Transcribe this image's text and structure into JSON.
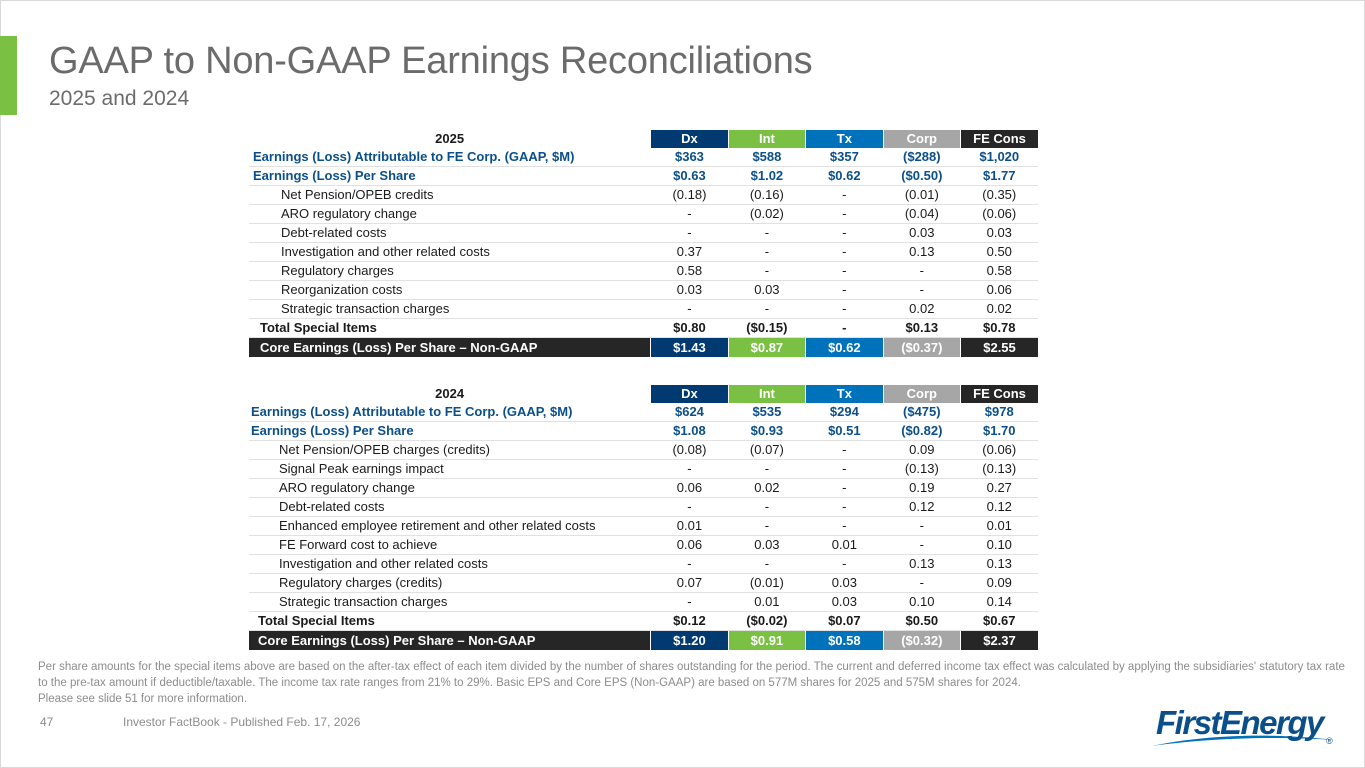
{
  "slide": {
    "title": "GAAP to Non-GAAP Earnings Reconciliations",
    "subtitle": "2025 and 2024",
    "page_number": "47",
    "source": "Investor FactBook - Published Feb. 17, 2026",
    "footnote": "Per share amounts for the special items above are based on the after-tax effect of each item divided by the number of shares outstanding for the period. The current and deferred income tax effect was calculated by applying the subsidiaries' statutory tax rate to the pre-tax amount if deductible/taxable. The income tax rate ranges from 21% to 29%. Basic EPS and Core EPS (Non-GAAP) are based on 577M shares for 2025 and 575M shares for 2024.",
    "footnote_2": "Please see slide 51 for more information.",
    "logo_text": "FirstEnergy",
    "logo_mark": "®"
  },
  "colors": {
    "accent_green": "#7ac143",
    "dx_navy": "#003a70",
    "tx_blue": "#0072bc",
    "corp_gray": "#a6a6a6",
    "fe_black": "#262626",
    "title_gray": "#6b6b6b",
    "blue_text": "#0b4f8a"
  },
  "tables": {
    "t2025": {
      "year": "2025",
      "headers": [
        "Dx",
        "Int",
        "Tx",
        "Corp",
        "FE Cons"
      ],
      "earnings": {
        "label": "Earnings (Loss) Attributable to FE Corp. (GAAP, $M)",
        "values": [
          "$363",
          "$588",
          "$357",
          "($288)",
          "$1,020"
        ]
      },
      "eps": {
        "label": "Earnings (Loss) Per Share",
        "values": [
          "$0.63",
          "$1.02",
          "$0.62",
          "($0.50)",
          "$1.77"
        ]
      },
      "items": [
        {
          "label": "Net Pension/OPEB credits",
          "values": [
            "(0.18)",
            "(0.16)",
            "-",
            "(0.01)",
            "(0.35)"
          ]
        },
        {
          "label": "ARO regulatory change",
          "values": [
            "-",
            "(0.02)",
            "-",
            "(0.04)",
            "(0.06)"
          ]
        },
        {
          "label": "Debt-related costs",
          "values": [
            "-",
            "-",
            "-",
            "0.03",
            "0.03"
          ]
        },
        {
          "label": "Investigation and other related costs",
          "values": [
            "0.37",
            "-",
            "-",
            "0.13",
            "0.50"
          ]
        },
        {
          "label": "Regulatory charges",
          "values": [
            "0.58",
            "-",
            "-",
            "-",
            "0.58"
          ]
        },
        {
          "label": "Reorganization costs",
          "values": [
            "0.03",
            "0.03",
            "-",
            "-",
            "0.06"
          ]
        },
        {
          "label": "Strategic transaction charges",
          "values": [
            "-",
            "-",
            "-",
            "0.02",
            "0.02"
          ]
        }
      ],
      "total": {
        "label": "Total Special Items",
        "values": [
          "$0.80",
          "($0.15)",
          "-",
          "$0.13",
          "$0.78"
        ]
      },
      "core": {
        "label": "Core Earnings (Loss) Per Share – Non-GAAP",
        "values": [
          "$1.43",
          "$0.87",
          "$0.62",
          "($0.37)",
          "$2.55"
        ]
      }
    },
    "t2024": {
      "year": "2024",
      "headers": [
        "Dx",
        "Int",
        "Tx",
        "Corp",
        "FE Cons"
      ],
      "earnings": {
        "label": "Earnings (Loss) Attributable to FE Corp. (GAAP, $M)",
        "values": [
          "$624",
          "$535",
          "$294",
          "($475)",
          "$978"
        ]
      },
      "eps": {
        "label": "Earnings (Loss) Per Share",
        "values": [
          "$1.08",
          "$0.93",
          "$0.51",
          "($0.82)",
          "$1.70"
        ]
      },
      "items": [
        {
          "label": "Net Pension/OPEB charges (credits)",
          "values": [
            "(0.08)",
            "(0.07)",
            "-",
            "0.09",
            "(0.06)"
          ]
        },
        {
          "label": "Signal Peak earnings impact",
          "values": [
            "-",
            "-",
            "-",
            "(0.13)",
            "(0.13)"
          ]
        },
        {
          "label": "ARO regulatory change",
          "values": [
            "0.06",
            "0.02",
            "-",
            "0.19",
            "0.27"
          ]
        },
        {
          "label": "Debt-related costs",
          "values": [
            "-",
            "-",
            "-",
            "0.12",
            "0.12"
          ]
        },
        {
          "label": "Enhanced employee retirement and other related costs",
          "values": [
            "0.01",
            "-",
            "-",
            "-",
            "0.01"
          ]
        },
        {
          "label": "FE Forward cost to achieve",
          "values": [
            "0.06",
            "0.03",
            "0.01",
            "-",
            "0.10"
          ]
        },
        {
          "label": "Investigation and other related costs",
          "values": [
            "-",
            "-",
            "-",
            "0.13",
            "0.13"
          ]
        },
        {
          "label": "Regulatory charges (credits)",
          "values": [
            "0.07",
            "(0.01)",
            "0.03",
            "-",
            "0.09"
          ]
        },
        {
          "label": "Strategic transaction charges",
          "values": [
            "-",
            "0.01",
            "0.03",
            "0.10",
            "0.14"
          ]
        }
      ],
      "total": {
        "label": "Total Special Items",
        "values": [
          "$0.12",
          "($0.02)",
          "$0.07",
          "$0.50",
          "$0.67"
        ]
      },
      "core": {
        "label": "Core Earnings (Loss) Per Share – Non-GAAP",
        "values": [
          "$1.20",
          "$0.91",
          "$0.58",
          "($0.32)",
          "$2.37"
        ]
      }
    }
  }
}
